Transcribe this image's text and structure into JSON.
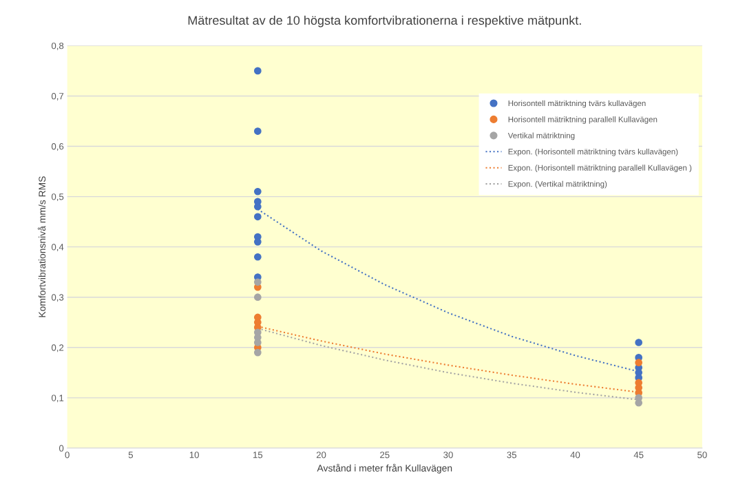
{
  "chart_data": {
    "type": "scatter",
    "title": "Mätresultat av de 10 högsta komfortvibrationerna i respektive mätpunkt.",
    "xlabel": "Avstånd i meter från Kullavägen",
    "ylabel": "Komfortvibrationsnivå mm/s RMS",
    "xlim": [
      0,
      50
    ],
    "xticks": [
      0,
      5,
      10,
      15,
      20,
      25,
      30,
      35,
      40,
      45,
      50
    ],
    "ylim": [
      0,
      0.8
    ],
    "yticks": [
      {
        "value": 0,
        "label": "0"
      },
      {
        "value": 0.1,
        "label": "0,1"
      },
      {
        "value": 0.2,
        "label": "0,2"
      },
      {
        "value": 0.3,
        "label": "0,3"
      },
      {
        "value": 0.4,
        "label": "0,4"
      },
      {
        "value": 0.5,
        "label": "0,5"
      },
      {
        "value": 0.6,
        "label": "0,6"
      },
      {
        "value": 0.7,
        "label": "0,7"
      },
      {
        "value": 0.8,
        "label": "0,8"
      }
    ],
    "grid": "y",
    "legend": "top right",
    "marker": "circle",
    "series": [
      {
        "name": "Horisontell mätriktning tvärs kullavägen",
        "color": "#4472c4",
        "x": [
          15,
          15,
          15,
          15,
          15,
          15,
          15,
          15,
          15,
          15,
          45,
          45,
          45,
          45,
          45
        ],
        "values": [
          0.75,
          0.63,
          0.51,
          0.49,
          0.48,
          0.46,
          0.42,
          0.41,
          0.38,
          0.34,
          0.21,
          0.18,
          0.16,
          0.15,
          0.14
        ]
      },
      {
        "name": "Horisontell mätriktning parallell Kullavägen",
        "color": "#ed7d31",
        "x": [
          15,
          15,
          15,
          15,
          15,
          45,
          45,
          45,
          45
        ],
        "values": [
          0.32,
          0.26,
          0.25,
          0.24,
          0.2,
          0.17,
          0.13,
          0.12,
          0.11
        ]
      },
      {
        "name": "Vertikal mätriktning",
        "color": "#a5a5a5",
        "x": [
          15,
          15,
          15,
          15,
          15,
          15,
          45,
          45
        ],
        "values": [
          0.33,
          0.3,
          0.23,
          0.22,
          0.21,
          0.19,
          0.1,
          0.09
        ]
      },
      {
        "name": "Expon. (Horisontell mätriktning tvärs kullavägen)",
        "type": "line",
        "line_style": "dotted",
        "marker": "none",
        "color": "#4472c4",
        "x": [
          15,
          20,
          25,
          30,
          35,
          40,
          45
        ],
        "values": [
          0.475,
          0.392,
          0.325,
          0.269,
          0.222,
          0.184,
          0.152
        ]
      },
      {
        "name": "Expon. (Horisontell mätriktning parallell Kullavägen )",
        "type": "line",
        "line_style": "dotted",
        "marker": "none",
        "color": "#ed7d31",
        "x": [
          15,
          20,
          25,
          30,
          35,
          40,
          45
        ],
        "values": [
          0.242,
          0.213,
          0.187,
          0.165,
          0.145,
          0.127,
          0.111
        ]
      },
      {
        "name": "Expon. (Vertikal mätriktning)",
        "type": "line",
        "line_style": "dotted",
        "marker": "none",
        "color": "#a5a5a5",
        "x": [
          15,
          20,
          25,
          30,
          35,
          40,
          45
        ],
        "values": [
          0.238,
          0.204,
          0.175,
          0.15,
          0.129,
          0.111,
          0.096
        ]
      }
    ]
  }
}
